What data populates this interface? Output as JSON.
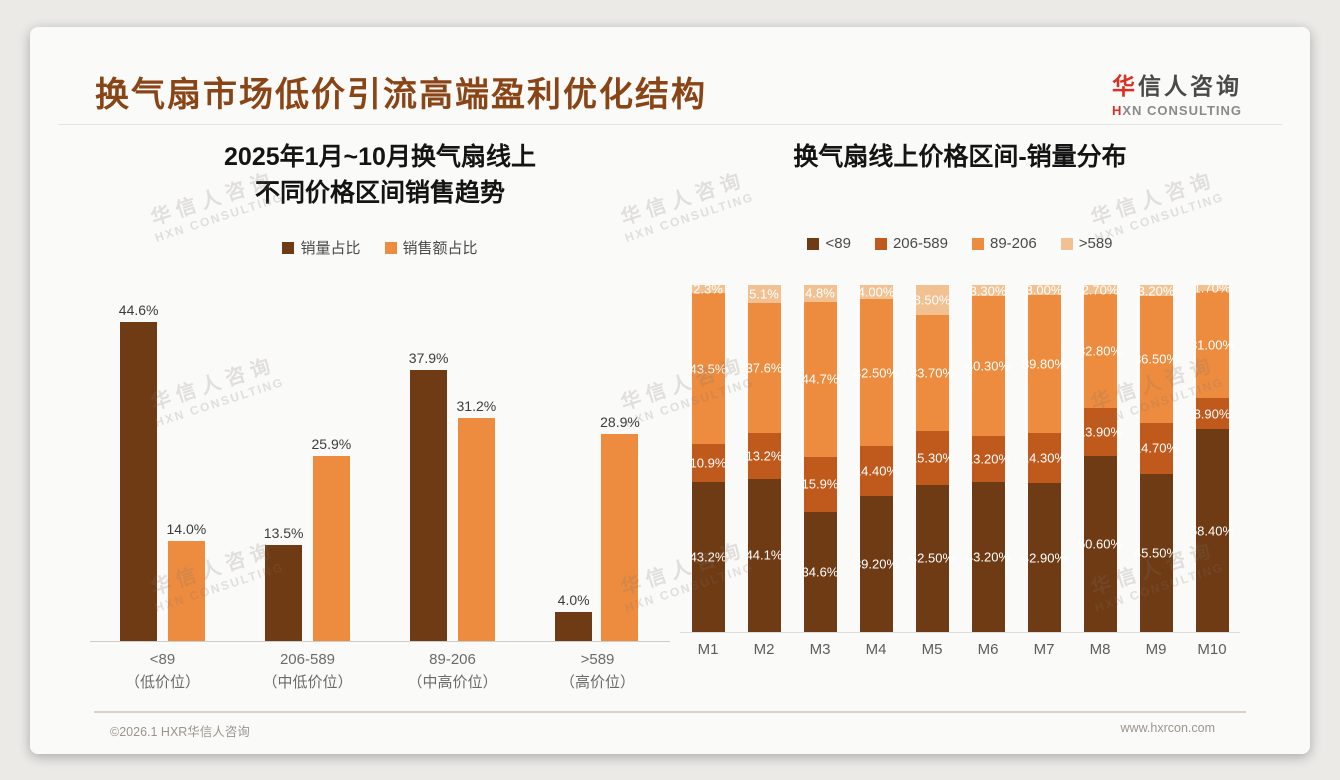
{
  "header": {
    "title": "换气扇市场低价引流高端盈利优化结构",
    "logo": {
      "cn_first": "华",
      "cn_rest": "信人咨询",
      "en_first": "H",
      "en_rest": "XN CONSULTING"
    }
  },
  "watermark": {
    "line1": "华信人咨询",
    "line2": "HXN CONSULTING"
  },
  "footer": {
    "copyright": "©2026.1 HXR华信人咨询",
    "website": "www.hxrcon.com"
  },
  "colors": {
    "title_brown": "#8A4517",
    "logo_red": "#D93025",
    "dark_brown": "#6F3B14",
    "mid_brown": "#C05A1C",
    "orange": "#ED8C3F",
    "light_peach": "#F2C191"
  },
  "chart_data": [
    {
      "type": "bar",
      "title_lines": [
        "2025年1月~10月换气扇线上",
        "不同价格区间销售趋势"
      ],
      "categories": [
        "<89",
        "206-589",
        "89-206",
        ">589"
      ],
      "category_sublabels": [
        "（低价位）",
        "（中低价位）",
        "（中高价位）",
        "（高价位）"
      ],
      "unit": "%",
      "ylim": [
        0,
        50
      ],
      "grid": false,
      "legend_position": "top",
      "series": [
        {
          "name": "销量占比",
          "color": "#6F3B14",
          "values": [
            44.6,
            13.5,
            37.9,
            4.0
          ],
          "labels": [
            "44.6%",
            "13.5%",
            "37.9%",
            "4.0%"
          ]
        },
        {
          "name": "销售额占比",
          "color": "#ED8C3F",
          "values": [
            14.0,
            25.9,
            31.2,
            28.9
          ],
          "labels": [
            "14.0%",
            "25.9%",
            "31.2%",
            "28.9%"
          ]
        }
      ]
    },
    {
      "type": "bar",
      "subtype": "stacked-100-percent",
      "title": "换气扇线上价格区间-销量分布",
      "categories": [
        "M1",
        "M2",
        "M3",
        "M4",
        "M5",
        "M6",
        "M7",
        "M8",
        "M9",
        "M10"
      ],
      "unit": "%",
      "ylim": [
        0,
        100
      ],
      "grid": false,
      "legend_position": "top",
      "stack_order_bottom_to_top": [
        "<89",
        "206-589",
        "89-206",
        ">589"
      ],
      "series": [
        {
          "name": "<89",
          "color": "#6F3B14",
          "values": [
            43.2,
            44.1,
            34.6,
            39.2,
            42.5,
            43.2,
            42.9,
            50.6,
            45.5,
            58.4
          ],
          "labels": [
            "43.2%",
            "44.1%",
            "34.6%",
            "39.20%",
            "42.50%",
            "43.20%",
            "42.90%",
            "50.60%",
            "45.50%",
            "58.40%"
          ]
        },
        {
          "name": "206-589",
          "color": "#C05A1C",
          "values": [
            10.9,
            13.2,
            15.9,
            14.4,
            15.3,
            13.2,
            14.3,
            13.9,
            14.7,
            8.9
          ],
          "labels": [
            "10.9%",
            "13.2%",
            "15.9%",
            "14.40%",
            "15.30%",
            "13.20%",
            "14.30%",
            "13.90%",
            "14.70%",
            "8.90%"
          ]
        },
        {
          "name": "89-206",
          "color": "#ED8C3F",
          "values": [
            43.5,
            37.6,
            44.7,
            42.5,
            33.7,
            40.3,
            39.8,
            32.8,
            36.5,
            31.0
          ],
          "labels": [
            "43.5%",
            "37.6%",
            "44.7%",
            "42.50%",
            "33.70%",
            "40.30%",
            "39.80%",
            "32.80%",
            "36.50%",
            "31.00%"
          ]
        },
        {
          "name": ">589",
          "color": "#F2C191",
          "values": [
            2.3,
            5.1,
            4.8,
            4.0,
            8.5,
            3.3,
            3.0,
            2.7,
            3.2,
            1.7
          ],
          "labels": [
            "2.3%",
            "5.1%",
            "4.8%",
            "4.00%",
            "8.50%",
            "3.30%",
            "3.00%",
            "2.70%",
            "3.20%",
            "1.70%"
          ]
        }
      ]
    }
  ]
}
